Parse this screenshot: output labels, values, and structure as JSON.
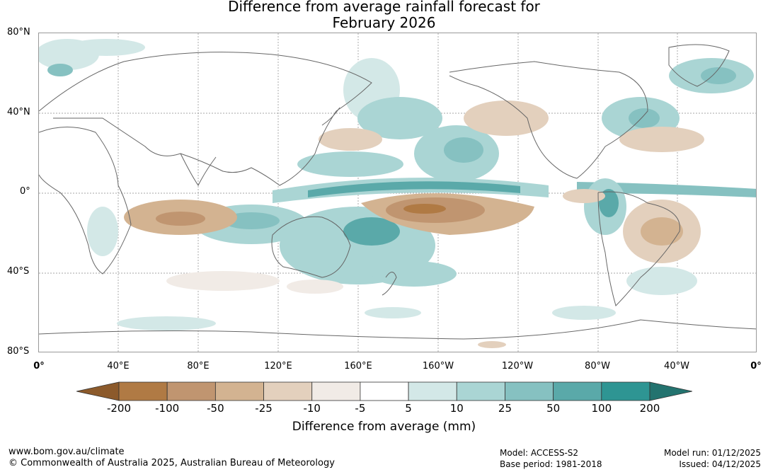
{
  "title": {
    "line1": "Difference from average rainfall forecast for",
    "line2": "February 2026"
  },
  "lat_labels": [
    "80°N",
    "40°N",
    "0°",
    "40°S",
    "80°S"
  ],
  "lon_labels": [
    "0°",
    "40°E",
    "80°E",
    "120°E",
    "160°E",
    "160°W",
    "120°W",
    "80°W",
    "40°W",
    "0°"
  ],
  "colorbar": {
    "title": "Difference from average (mm)",
    "tick_labels": [
      "-200",
      "-100",
      "-50",
      "-25",
      "-10",
      "-5",
      "5",
      "10",
      "25",
      "50",
      "100",
      "200"
    ],
    "colors": [
      "#8c5a2b",
      "#b07a44",
      "#c09570",
      "#d3b391",
      "#e3d0bd",
      "#f1ebe6",
      "#ffffff",
      "#d3e8e7",
      "#aad5d4",
      "#86c1c1",
      "#5aa9a9",
      "#2e9593",
      "#23736f"
    ]
  },
  "footer": {
    "website": "www.bom.gov.au/climate",
    "copyright": "© Commonwealth of Australia 2025, Australian Bureau of Meteorology",
    "model": "Model: ACCESS-S2",
    "base_period": "Base period: 1981-2018",
    "model_run": "Model run: 01/12/2025",
    "issued": "Issued: 04/12/2025"
  }
}
